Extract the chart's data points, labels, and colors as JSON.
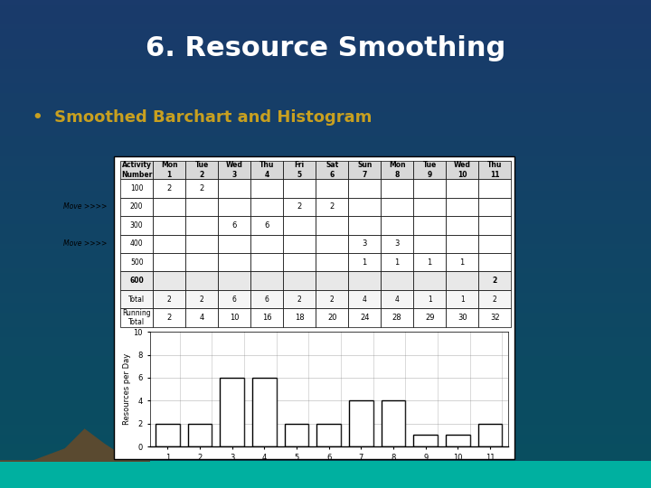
{
  "title": "6. Resource Smoothing",
  "bullet": "Smoothed Barchart and Histogram",
  "bg_top": "#1a3a6b",
  "bg_bottom": "#0a4a5a",
  "title_color": "#ffffff",
  "bullet_color": "#c8a020",
  "table_headers": [
    "Activity\nNumber",
    "Mon\n1",
    "Tue\n2",
    "Wed\n3",
    "Thu\n4",
    "Fri\n5",
    "Sat\n6",
    "Sun\n7",
    "Mon\n8",
    "Tue\n9",
    "Wed\n10",
    "Thu\n11"
  ],
  "table_rows": [
    [
      "100",
      "2",
      "2",
      "",
      "",
      "",
      "",
      "",
      "",
      "",
      "",
      ""
    ],
    [
      "200",
      "",
      "",
      "",
      "",
      "2",
      "2",
      "",
      "",
      "",
      "",
      ""
    ],
    [
      "300",
      "",
      "",
      "6",
      "6",
      "",
      "",
      "",
      "",
      "",
      "",
      ""
    ],
    [
      "400",
      "",
      "",
      "",
      "",
      "",
      "",
      "3",
      "3",
      "",
      "",
      ""
    ],
    [
      "500",
      "",
      "",
      "",
      "",
      "",
      "",
      "1",
      "1",
      "1",
      "1",
      ""
    ],
    [
      "600",
      "",
      "",
      "",
      "",
      "",
      "",
      "",
      "",
      "",
      "",
      "2"
    ]
  ],
  "total_row": [
    "Total",
    "2",
    "2",
    "6",
    "6",
    "2",
    "2",
    "4",
    "4",
    "1",
    "1",
    "2"
  ],
  "running_row": [
    "Running\nTotal",
    "2",
    "4",
    "10",
    "16",
    "18",
    "20",
    "24",
    "28",
    "29",
    "30",
    "32"
  ],
  "move_row_1": 1,
  "move_row_2": 3,
  "bar_heights": [
    2,
    2,
    6,
    6,
    2,
    2,
    4,
    4,
    1,
    1,
    2
  ],
  "bar_x": [
    1,
    2,
    3,
    4,
    5,
    6,
    7,
    8,
    9,
    10,
    11
  ],
  "ylabel": "Resources per Day",
  "ylim": [
    0,
    10
  ],
  "yticks": [
    0,
    2,
    4,
    6,
    8,
    10
  ],
  "xticks": [
    1,
    2,
    3,
    4,
    5,
    6,
    7,
    8,
    9,
    10,
    11
  ]
}
